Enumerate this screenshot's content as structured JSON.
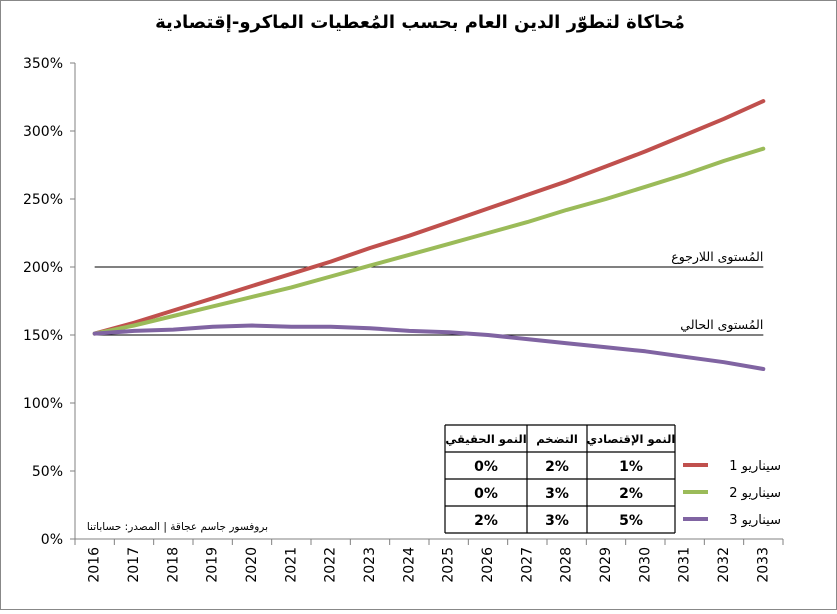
{
  "chart_data": {
    "type": "line",
    "title": "مُحاكاة لتطوّر الدين العام بحسب المُعطيات الماكرو-إقتصادية",
    "source": "بروفسور جاسم عجاقة | المصدر: حساباتنا",
    "x": [
      "2016",
      "2017",
      "2018",
      "2019",
      "2020",
      "2021",
      "2022",
      "2023",
      "2024",
      "2025",
      "2026",
      "2027",
      "2028",
      "2029",
      "2030",
      "2031",
      "2032",
      "2033"
    ],
    "ylim": [
      0,
      350
    ],
    "yticks": [
      "0%",
      "50%",
      "100%",
      "150%",
      "200%",
      "250%",
      "300%",
      "350%"
    ],
    "series": [
      {
        "name": "سيناريو 1",
        "color": "#c0504d",
        "values": [
          151,
          159,
          168,
          177,
          186,
          195,
          204,
          214,
          223,
          233,
          243,
          253,
          263,
          274,
          285,
          297,
          309,
          322
        ]
      },
      {
        "name": "سيناريو 2",
        "color": "#9bbb59",
        "values": [
          151,
          157,
          164,
          171,
          178,
          185,
          193,
          201,
          209,
          217,
          225,
          233,
          242,
          250,
          259,
          268,
          278,
          287
        ]
      },
      {
        "name": "سيناريو 3",
        "color": "#8064a2",
        "values": [
          151,
          153,
          154,
          156,
          157,
          156,
          156,
          155,
          153,
          152,
          150,
          147,
          144,
          141,
          138,
          134,
          130,
          125
        ]
      }
    ],
    "reference_lines": [
      {
        "label": "المُستوى اللارجوع",
        "value": 200
      },
      {
        "label": "المُستوى الحالي",
        "value": 150
      }
    ],
    "table": {
      "headers": [
        "النمو الإقتصادي",
        "التضخم",
        "النمو الحقيقي"
      ],
      "rows": [
        [
          "1%",
          "2%",
          "0%"
        ],
        [
          "2%",
          "3%",
          "0%"
        ],
        [
          "5%",
          "3%",
          "2%"
        ]
      ]
    }
  }
}
